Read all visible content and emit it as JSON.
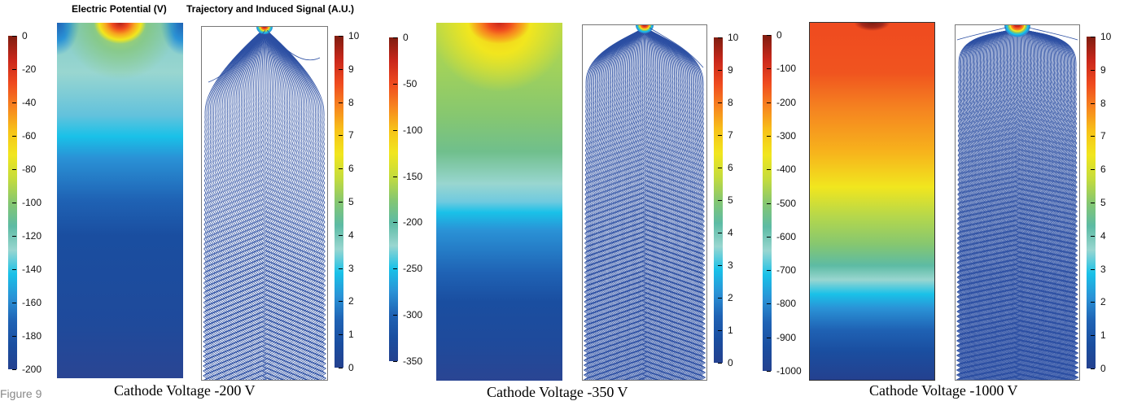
{
  "titles": {
    "potential": "Electric Potential (V)",
    "trajectory": "Trajectory and Induced Signal (A.U.)"
  },
  "figure_label": "Figure 9",
  "colormap": [
    "#7f1d10",
    "#c9271b",
    "#ef4a1f",
    "#f7851f",
    "#f7c318",
    "#f1e61e",
    "#c5dc3c",
    "#86c770",
    "#5dbba4",
    "#99d6d0",
    "#19c1e8",
    "#2a92d6",
    "#1f62b4",
    "#1a4ea0",
    "#24418f"
  ],
  "panels": [
    {
      "caption": "Cathode Voltage -200 V",
      "potential_ticks": [
        "0",
        "-20",
        "-40",
        "-60",
        "-80",
        "-100",
        "-120",
        "-140",
        "-160",
        "-180",
        "-200"
      ],
      "signal_ticks": [
        "10",
        "9",
        "8",
        "7",
        "6",
        "5",
        "4",
        "3",
        "2",
        "1",
        "0"
      ]
    },
    {
      "caption": "Cathode Voltage -350 V",
      "potential_ticks": [
        "0",
        "-50",
        "-100",
        "-150",
        "-200",
        "-250",
        "-300",
        "-350"
      ],
      "signal_ticks": [
        "10",
        "9",
        "8",
        "7",
        "6",
        "5",
        "4",
        "3",
        "2",
        "1",
        "0"
      ]
    },
    {
      "caption": "Cathode Voltage -1000 V",
      "potential_ticks": [
        "0",
        "-100",
        "-200",
        "-300",
        "-400",
        "-500",
        "-600",
        "-700",
        "-800",
        "-900",
        "-1000"
      ],
      "signal_ticks": [
        "10",
        "9",
        "8",
        "7",
        "6",
        "5",
        "4",
        "3",
        "2",
        "1",
        "0"
      ]
    }
  ]
}
